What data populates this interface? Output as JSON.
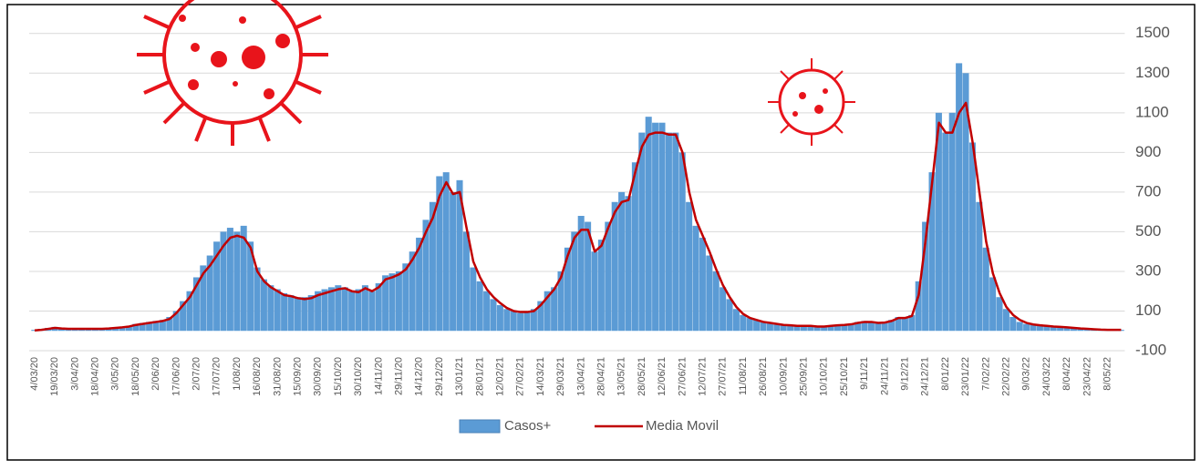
{
  "chart_data": {
    "type": "bar-line",
    "categories": [
      "4/03/20",
      null,
      null,
      "19/03/20",
      null,
      null,
      "3/04/20",
      null,
      null,
      "18/04/20",
      null,
      null,
      "3/05/20",
      null,
      null,
      "18/05/20",
      null,
      null,
      "2/06/20",
      null,
      null,
      "17/06/20",
      null,
      null,
      "2/07/20",
      null,
      null,
      "17/07/20",
      null,
      null,
      "1/08/20",
      null,
      null,
      "16/08/20",
      null,
      null,
      "31/08/20",
      null,
      null,
      "15/09/20",
      null,
      null,
      "30/09/20",
      null,
      null,
      "15/10/20",
      null,
      null,
      "30/10/20",
      null,
      null,
      "14/11/20",
      null,
      null,
      "29/11/20",
      null,
      null,
      "14/12/20",
      null,
      null,
      "29/12/20",
      null,
      null,
      "13/01/21",
      null,
      null,
      "28/01/21",
      null,
      null,
      "12/02/21",
      null,
      null,
      "27/02/21",
      null,
      null,
      "14/03/21",
      null,
      null,
      "29/03/21",
      null,
      null,
      "13/04/21",
      null,
      null,
      "28/04/21",
      null,
      null,
      "13/05/21",
      null,
      null,
      "28/05/21",
      null,
      null,
      "12/06/21",
      null,
      null,
      "27/06/21",
      null,
      null,
      "12/07/21",
      null,
      null,
      "27/07/21",
      null,
      null,
      "11/08/21",
      null,
      null,
      "26/08/21",
      null,
      null,
      "10/09/21",
      null,
      null,
      "25/09/21",
      null,
      null,
      "10/10/21",
      null,
      null,
      "25/10/21",
      null,
      null,
      "9/11/21",
      null,
      null,
      "24/11/21",
      null,
      null,
      "9/12/21",
      null,
      null,
      "24/12/21",
      null,
      null,
      "8/01/22",
      null,
      null,
      "23/01/22",
      null,
      null,
      "7/02/22",
      null,
      null,
      "22/02/22",
      null,
      null,
      "9/03/22",
      null,
      null,
      "24/03/22",
      null,
      null,
      "8/04/22",
      null,
      null,
      "23/04/22",
      null,
      null,
      "8/05/22",
      null,
      null
    ],
    "series": [
      {
        "name": "Casos+",
        "color": "#5b9bd5",
        "values": [
          5,
          10,
          15,
          20,
          15,
          10,
          10,
          10,
          10,
          12,
          12,
          15,
          15,
          20,
          25,
          35,
          40,
          45,
          50,
          55,
          70,
          100,
          150,
          200,
          270,
          330,
          380,
          450,
          500,
          520,
          500,
          530,
          450,
          320,
          260,
          230,
          210,
          190,
          180,
          170,
          170,
          180,
          200,
          210,
          220,
          230,
          220,
          200,
          210,
          230,
          200,
          240,
          280,
          290,
          300,
          340,
          400,
          470,
          560,
          650,
          780,
          800,
          700,
          760,
          500,
          320,
          250,
          200,
          160,
          130,
          110,
          100,
          90,
          95,
          110,
          150,
          200,
          220,
          300,
          420,
          500,
          580,
          550,
          400,
          460,
          550,
          650,
          700,
          680,
          850,
          1000,
          1080,
          1050,
          1050,
          1000,
          1000,
          900,
          650,
          530,
          470,
          380,
          300,
          220,
          160,
          110,
          80,
          65,
          55,
          45,
          40,
          35,
          30,
          28,
          25,
          25,
          25,
          22,
          25,
          25,
          30,
          30,
          35,
          45,
          50,
          45,
          40,
          45,
          55,
          70,
          70,
          80,
          250,
          550,
          800,
          1100,
          1000,
          1100,
          1350,
          1300,
          950,
          650,
          420,
          270,
          170,
          110,
          70,
          45,
          35,
          30,
          25,
          22,
          20,
          18,
          15,
          12,
          10,
          10,
          8,
          6,
          5,
          5,
          5
        ]
      },
      {
        "name": "Media Movil",
        "color": "#c00000",
        "values": [
          2,
          5,
          10,
          15,
          12,
          10,
          10,
          10,
          10,
          10,
          10,
          12,
          15,
          18,
          22,
          30,
          35,
          40,
          45,
          50,
          60,
          90,
          130,
          170,
          230,
          290,
          330,
          380,
          430,
          470,
          480,
          470,
          420,
          300,
          250,
          220,
          200,
          180,
          175,
          165,
          160,
          165,
          180,
          190,
          200,
          210,
          215,
          200,
          195,
          215,
          200,
          220,
          260,
          270,
          285,
          310,
          360,
          420,
          500,
          570,
          680,
          750,
          690,
          700,
          520,
          350,
          270,
          210,
          170,
          140,
          115,
          100,
          95,
          95,
          100,
          130,
          170,
          210,
          270,
          380,
          470,
          510,
          510,
          400,
          430,
          520,
          600,
          650,
          660,
          800,
          930,
          990,
          1000,
          1000,
          990,
          990,
          900,
          700,
          560,
          480,
          400,
          310,
          230,
          170,
          120,
          85,
          65,
          55,
          45,
          40,
          35,
          30,
          28,
          25,
          25,
          25,
          22,
          22,
          25,
          28,
          30,
          33,
          40,
          45,
          45,
          40,
          42,
          50,
          65,
          65,
          75,
          180,
          450,
          750,
          1050,
          1000,
          1000,
          1100,
          1150,
          950,
          700,
          450,
          290,
          190,
          120,
          80,
          55,
          40,
          32,
          28,
          25,
          22,
          20,
          18,
          15,
          12,
          10,
          8,
          6,
          5,
          5,
          5
        ]
      }
    ],
    "ylim": [
      -100,
      1600
    ],
    "yticks": [
      -100,
      100,
      300,
      500,
      700,
      900,
      1100,
      1300,
      1500
    ],
    "grid": true
  }
}
